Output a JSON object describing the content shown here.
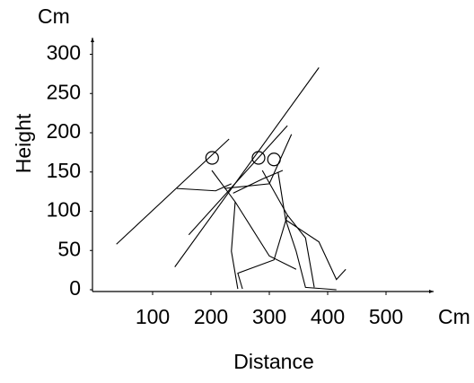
{
  "chart_data": {
    "type": "line",
    "ylabel": "Height",
    "xlabel": "Distance",
    "y_unit": "Cm",
    "x_unit": "Cm",
    "xlim": [
      0,
      580
    ],
    "ylim": [
      0,
      320
    ],
    "xticks": [
      100,
      200,
      300,
      400,
      500
    ],
    "yticks": [
      0,
      50,
      100,
      150,
      200,
      250,
      300
    ],
    "series": [
      {
        "color": "#000000",
        "x": [
          38,
          231
        ],
        "values": [
          58,
          192
        ]
      },
      {
        "color": "#000000",
        "x": [
          138,
          385
        ],
        "values": [
          29,
          283
        ]
      },
      {
        "color": "#000000",
        "x": [
          162,
          331
        ],
        "values": [
          70,
          209
        ]
      },
      {
        "color": "#000000",
        "x": [
          201.5,
          241.5,
          300,
          346
        ],
        "values": [
          152,
          112,
          43,
          26
        ]
      },
      {
        "color": "#000000",
        "x": [
          241.5,
          235,
          246
        ],
        "values": [
          112,
          49,
          1
        ]
      },
      {
        "color": "#000000",
        "x": [
          141.5,
          208,
          235
        ],
        "values": [
          129,
          126,
          135
        ]
      },
      {
        "color": "#000000",
        "x": [
          288,
          331,
          362,
          377
        ],
        "values": [
          152,
          95,
          66,
          3
        ]
      },
      {
        "color": "#000000",
        "x": [
          331,
          308,
          246,
          254
        ],
        "values": [
          95,
          38,
          21,
          1
        ]
      },
      {
        "color": "#000000",
        "x": [
          238,
          288,
          323
        ],
        "values": [
          123,
          141,
          152
        ]
      },
      {
        "color": "#000000",
        "x": [
          315,
          328,
          385,
          415,
          431
        ],
        "values": [
          150,
          89,
          61,
          13,
          26
        ]
      },
      {
        "color": "#000000",
        "x": [
          328,
          346,
          362,
          415
        ],
        "values": [
          89,
          49,
          3,
          0
        ]
      },
      {
        "color": "#000000",
        "x": [
          223,
          300,
          338
        ],
        "values": [
          129,
          135,
          198
        ]
      },
      {
        "color": "#000000",
        "marker": "circle",
        "x": [
          202
        ],
        "values": [
          168
        ]
      },
      {
        "color": "#000000",
        "marker": "circle",
        "x": [
          281.5
        ],
        "values": [
          168
        ]
      },
      {
        "color": "#000000",
        "marker": "circle",
        "x": [
          308
        ],
        "values": [
          166
        ]
      }
    ]
  }
}
